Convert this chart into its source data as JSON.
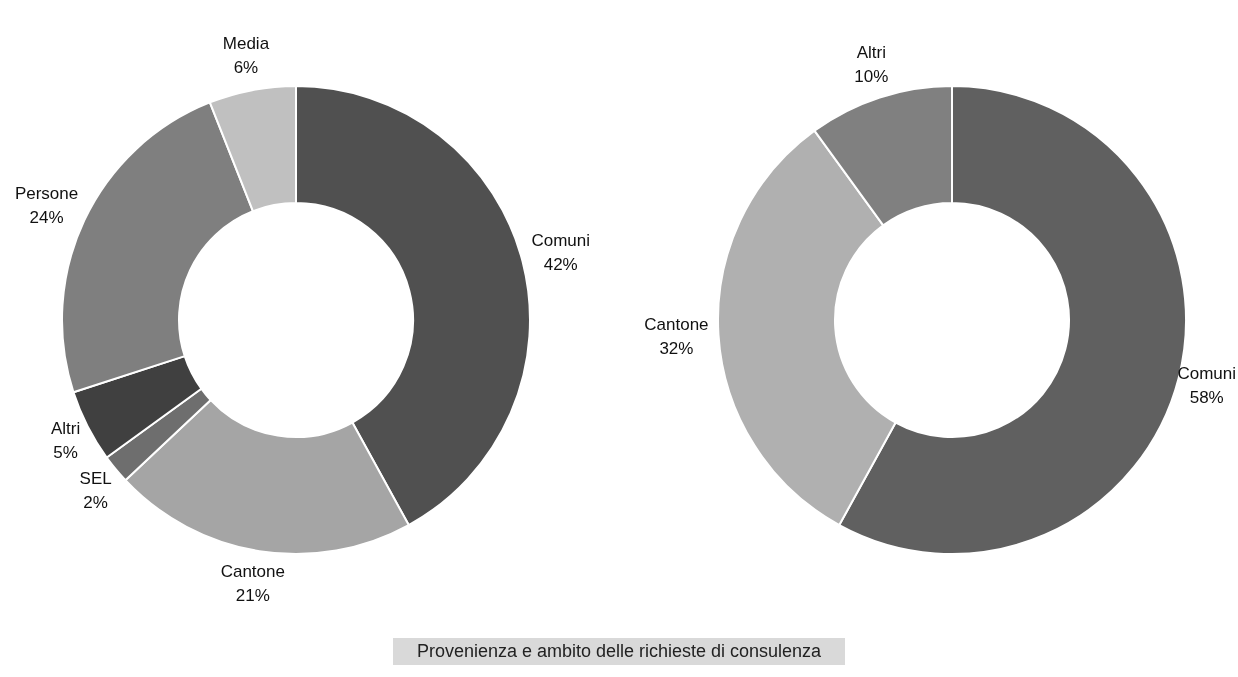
{
  "chart_data": [
    {
      "type": "donut",
      "categories": [
        "Comuni",
        "Cantone",
        "SEL",
        "Altri",
        "Persone",
        "Media"
      ],
      "values": [
        42,
        21,
        2,
        5,
        24,
        6
      ],
      "colors": [
        "#505050",
        "#a5a5a5",
        "#6e6e6e",
        "#404040",
        "#7f7f7f",
        "#c0c0c0"
      ],
      "value_labels": [
        "42%",
        "21%",
        "2%",
        "5%",
        "24%",
        "6%"
      ],
      "annotations": [
        "Provenienza e ambito delle richieste di consulenza"
      ]
    },
    {
      "type": "donut",
      "categories": [
        "Comuni",
        "Cantone",
        "Altri"
      ],
      "values": [
        58,
        32,
        10
      ],
      "colors": [
        "#606060",
        "#b0b0b0",
        "#808080"
      ],
      "value_labels": [
        "58%",
        "32%",
        "10%"
      ]
    }
  ]
}
